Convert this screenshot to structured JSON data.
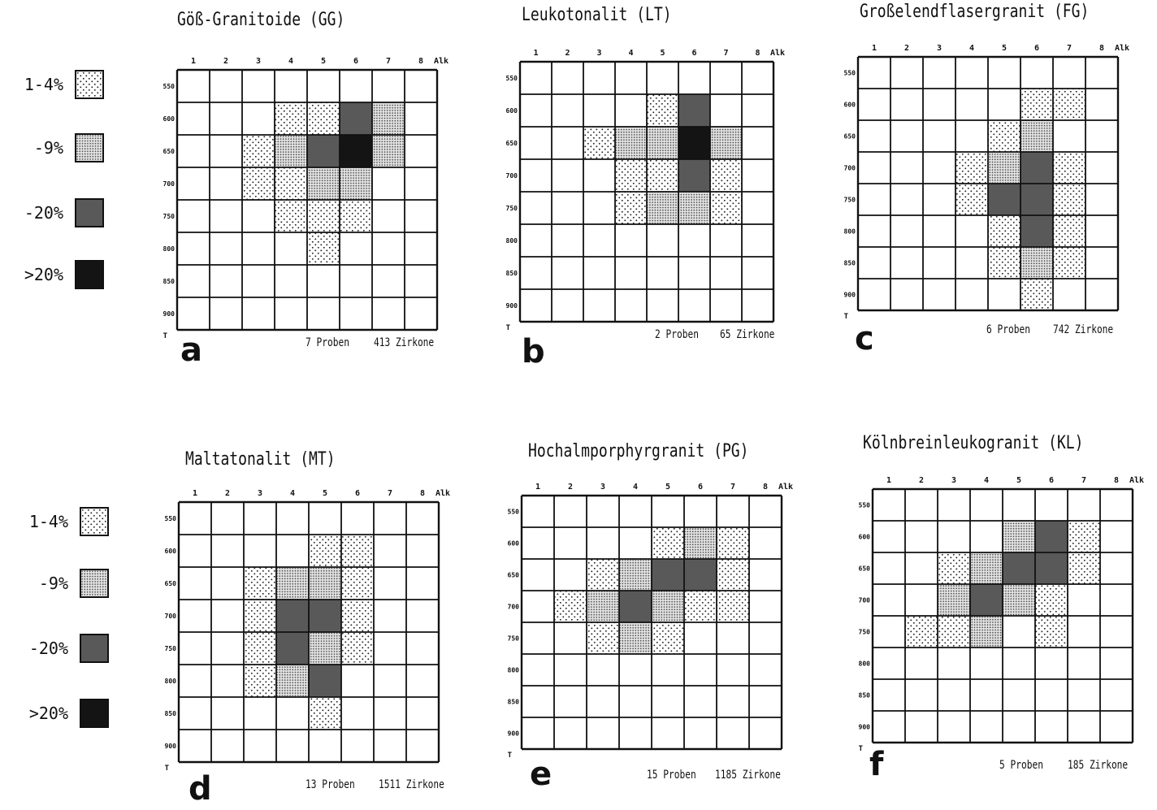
{
  "legend": [
    {
      "label": "1-4%",
      "level": 1
    },
    {
      "label": "-9%",
      "level": 2
    },
    {
      "label": "-20%",
      "level": 3
    },
    {
      "label": ">20%",
      "level": 4
    }
  ],
  "axes": {
    "x_ticks": [
      "1",
      "2",
      "3",
      "4",
      "5",
      "6",
      "7",
      "8"
    ],
    "x_unit": "Alk",
    "y_ticks": [
      "550",
      "600",
      "650",
      "700",
      "750",
      "800",
      "850",
      "900"
    ],
    "y_unit": "T"
  },
  "chart_data": [
    {
      "type": "heatmap",
      "letter": "a",
      "title": "Göß-Granitoide (GG)",
      "proben": "7 Proben",
      "zirkone": "413 Zirkone",
      "cells": [
        [
          4,
          2,
          1
        ],
        [
          5,
          2,
          1
        ],
        [
          6,
          2,
          3
        ],
        [
          7,
          2,
          2
        ],
        [
          3,
          3,
          1
        ],
        [
          4,
          3,
          2
        ],
        [
          5,
          3,
          3
        ],
        [
          6,
          3,
          4
        ],
        [
          7,
          3,
          2
        ],
        [
          3,
          4,
          1
        ],
        [
          4,
          4,
          1
        ],
        [
          5,
          4,
          2
        ],
        [
          6,
          4,
          2
        ],
        [
          4,
          5,
          1
        ],
        [
          5,
          5,
          1
        ],
        [
          6,
          5,
          1
        ],
        [
          5,
          6,
          1
        ]
      ]
    },
    {
      "type": "heatmap",
      "letter": "b",
      "title": "Leukotonalit (LT)",
      "proben": "2 Proben",
      "zirkone": "65 Zirkone",
      "cells": [
        [
          5,
          2,
          1
        ],
        [
          6,
          2,
          3
        ],
        [
          3,
          3,
          1
        ],
        [
          4,
          3,
          2
        ],
        [
          5,
          3,
          2
        ],
        [
          6,
          3,
          4
        ],
        [
          7,
          3,
          2
        ],
        [
          4,
          4,
          1
        ],
        [
          5,
          4,
          1
        ],
        [
          6,
          4,
          3
        ],
        [
          7,
          4,
          1
        ],
        [
          4,
          5,
          1
        ],
        [
          5,
          5,
          2
        ],
        [
          6,
          5,
          2
        ],
        [
          7,
          5,
          1
        ]
      ]
    },
    {
      "type": "heatmap",
      "letter": "c",
      "title": "Großelendflasergranit (FG)",
      "proben": "6 Proben",
      "zirkone": "742 Zirkone",
      "cells": [
        [
          6,
          2,
          1
        ],
        [
          7,
          2,
          1
        ],
        [
          5,
          3,
          1
        ],
        [
          6,
          3,
          2
        ],
        [
          4,
          4,
          1
        ],
        [
          5,
          4,
          2
        ],
        [
          6,
          4,
          3
        ],
        [
          7,
          4,
          1
        ],
        [
          4,
          5,
          1
        ],
        [
          5,
          5,
          3
        ],
        [
          6,
          5,
          3
        ],
        [
          7,
          5,
          1
        ],
        [
          5,
          6,
          1
        ],
        [
          6,
          6,
          3
        ],
        [
          7,
          6,
          1
        ],
        [
          5,
          7,
          1
        ],
        [
          6,
          7,
          2
        ],
        [
          7,
          7,
          1
        ],
        [
          6,
          8,
          1
        ]
      ]
    },
    {
      "type": "heatmap",
      "letter": "d",
      "title": "Maltatonalit (MT)",
      "proben": "13 Proben",
      "zirkone": "1511 Zirkone",
      "cells": [
        [
          5,
          2,
          1
        ],
        [
          6,
          2,
          1
        ],
        [
          3,
          3,
          1
        ],
        [
          4,
          3,
          2
        ],
        [
          5,
          3,
          2
        ],
        [
          6,
          3,
          1
        ],
        [
          3,
          4,
          1
        ],
        [
          4,
          4,
          3
        ],
        [
          5,
          4,
          3
        ],
        [
          6,
          4,
          1
        ],
        [
          3,
          5,
          1
        ],
        [
          4,
          5,
          3
        ],
        [
          5,
          5,
          2
        ],
        [
          6,
          5,
          1
        ],
        [
          3,
          6,
          1
        ],
        [
          4,
          6,
          2
        ],
        [
          5,
          6,
          3
        ],
        [
          5,
          7,
          1
        ]
      ]
    },
    {
      "type": "heatmap",
      "letter": "e",
      "title": "Hochalmporphyrgranit (PG)",
      "proben": "15 Proben",
      "zirkone": "1185 Zirkone",
      "cells": [
        [
          5,
          2,
          1
        ],
        [
          6,
          2,
          2
        ],
        [
          7,
          2,
          1
        ],
        [
          3,
          3,
          1
        ],
        [
          4,
          3,
          2
        ],
        [
          5,
          3,
          3
        ],
        [
          6,
          3,
          3
        ],
        [
          7,
          3,
          1
        ],
        [
          2,
          4,
          1
        ],
        [
          3,
          4,
          2
        ],
        [
          4,
          4,
          3
        ],
        [
          5,
          4,
          2
        ],
        [
          6,
          4,
          1
        ],
        [
          7,
          4,
          1
        ],
        [
          3,
          5,
          1
        ],
        [
          4,
          5,
          2
        ],
        [
          5,
          5,
          1
        ]
      ]
    },
    {
      "type": "heatmap",
      "letter": "f",
      "title": "Kölnbreinleukogranit (KL)",
      "proben": "5 Proben",
      "zirkone": "185 Zirkone",
      "cells": [
        [
          5,
          2,
          2
        ],
        [
          6,
          2,
          3
        ],
        [
          7,
          2,
          1
        ],
        [
          3,
          3,
          1
        ],
        [
          4,
          3,
          2
        ],
        [
          5,
          3,
          3
        ],
        [
          6,
          3,
          3
        ],
        [
          7,
          3,
          1
        ],
        [
          3,
          4,
          2
        ],
        [
          4,
          4,
          3
        ],
        [
          5,
          4,
          2
        ],
        [
          6,
          4,
          1
        ],
        [
          2,
          5,
          1
        ],
        [
          3,
          5,
          1
        ],
        [
          4,
          5,
          2
        ],
        [
          6,
          5,
          1
        ]
      ]
    }
  ]
}
